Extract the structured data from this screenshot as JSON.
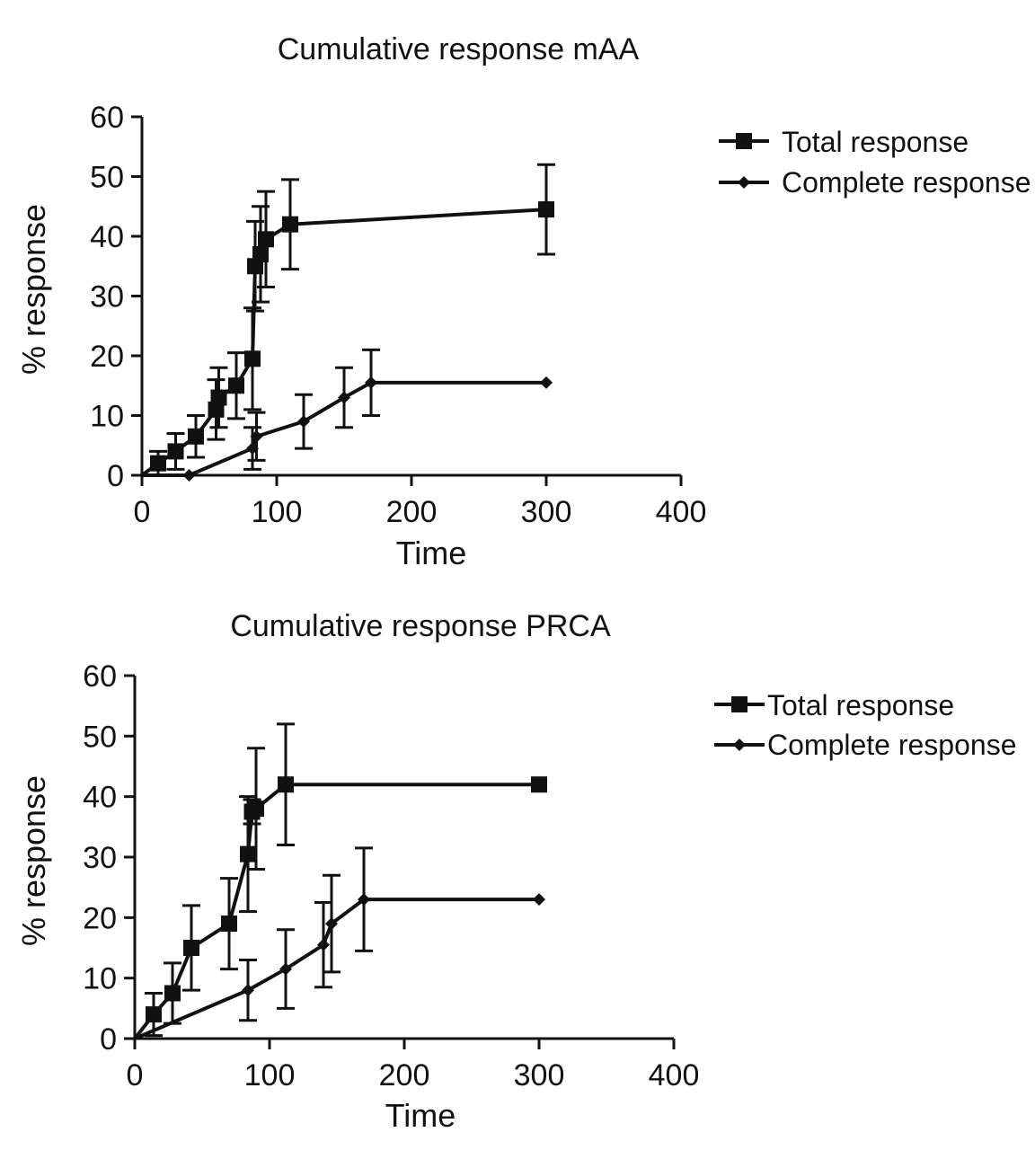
{
  "chart_data": [
    {
      "type": "line",
      "title": "Cumulative response mAA",
      "xlabel": "Time",
      "ylabel": "% response",
      "xlim": [
        0,
        400
      ],
      "ylim": [
        0,
        60
      ],
      "x_ticks": [
        "0",
        "100",
        "200",
        "300",
        "400"
      ],
      "y_ticks": [
        "0",
        "10",
        "20",
        "30",
        "40",
        "50",
        "60"
      ],
      "legend": "top-right",
      "series": [
        {
          "name": "Total response",
          "marker": "square",
          "points": [
            {
              "x": 0,
              "y": 0
            },
            {
              "x": 12,
              "y": 2,
              "err": 2
            },
            {
              "x": 25,
              "y": 4,
              "err": 3
            },
            {
              "x": 40,
              "y": 6.5,
              "err": 3.5
            },
            {
              "x": 55,
              "y": 11,
              "err": 5
            },
            {
              "x": 57,
              "y": 13,
              "err": 5
            },
            {
              "x": 70,
              "y": 15,
              "err": 5.5
            },
            {
              "x": 82,
              "y": 19.5,
              "err": 8.5
            },
            {
              "x": 84,
              "y": 35,
              "err": 7.5
            },
            {
              "x": 88,
              "y": 37,
              "err": 8
            },
            {
              "x": 92,
              "y": 39.5,
              "err": 8
            },
            {
              "x": 110,
              "y": 42,
              "err": 7.5
            },
            {
              "x": 300,
              "y": 44.5,
              "err": 7.5
            }
          ]
        },
        {
          "name": "Complete response",
          "marker": "diamond",
          "points": [
            {
              "x": 0,
              "y": 0
            },
            {
              "x": 35,
              "y": 0
            },
            {
              "x": 82,
              "y": 4.5,
              "err": 3.5
            },
            {
              "x": 85,
              "y": 6.5,
              "err": 4
            },
            {
              "x": 120,
              "y": 9,
              "err": 4.5
            },
            {
              "x": 150,
              "y": 13,
              "err": 5
            },
            {
              "x": 170,
              "y": 15.5,
              "err": 5.5
            },
            {
              "x": 300,
              "y": 15.5
            }
          ]
        }
      ]
    },
    {
      "type": "line",
      "title": "Cumulative response PRCA",
      "xlabel": "Time",
      "ylabel": "% response",
      "xlim": [
        0,
        400
      ],
      "ylim": [
        0,
        60
      ],
      "x_ticks": [
        "0",
        "100",
        "200",
        "300",
        "400"
      ],
      "y_ticks": [
        "0",
        "10",
        "20",
        "30",
        "40",
        "50",
        "60"
      ],
      "legend": "top-right",
      "series": [
        {
          "name": "Total response",
          "marker": "square",
          "points": [
            {
              "x": 0,
              "y": 0
            },
            {
              "x": 14,
              "y": 4,
              "err": 3.5
            },
            {
              "x": 28,
              "y": 7.5,
              "err": 5
            },
            {
              "x": 42,
              "y": 15,
              "err": 7
            },
            {
              "x": 70,
              "y": 19,
              "err": 7.5
            },
            {
              "x": 84,
              "y": 30.5,
              "err": 9.5
            },
            {
              "x": 87,
              "y": 37.5,
              "err": 2
            },
            {
              "x": 90,
              "y": 38,
              "err": 10
            },
            {
              "x": 112,
              "y": 42,
              "err": 10
            },
            {
              "x": 300,
              "y": 42
            }
          ]
        },
        {
          "name": "Complete response",
          "marker": "diamond",
          "points": [
            {
              "x": 0,
              "y": 0
            },
            {
              "x": 84,
              "y": 8,
              "err": 5
            },
            {
              "x": 112,
              "y": 11.5,
              "err": 6.5
            },
            {
              "x": 140,
              "y": 15.5,
              "err": 7
            },
            {
              "x": 146,
              "y": 19,
              "err": 8
            },
            {
              "x": 170,
              "y": 23,
              "err": 8.5
            },
            {
              "x": 300,
              "y": 23
            }
          ]
        }
      ]
    }
  ]
}
